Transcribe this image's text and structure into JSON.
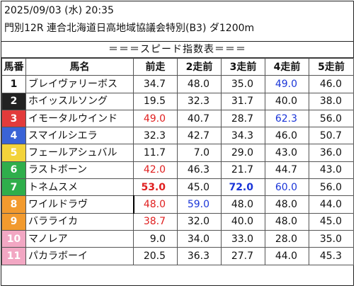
{
  "header": {
    "line1": "2025/09/03 (水) 20:35",
    "line2": "門別12R 連合北海道日高地域協議会特別(B3) ダ1200m"
  },
  "title": "＝＝＝スピード指数表＝＝＝",
  "columns": [
    "馬番",
    "馬名",
    "前走",
    "2走前",
    "3走前",
    "4走前",
    "5走前"
  ],
  "colors": {
    "red": "#e02020",
    "blue": "#1a35d8"
  },
  "rows": [
    {
      "no": "1",
      "name": "ブレイヴァリーボス",
      "bg": "#ffffff",
      "fg": "#111111",
      "vals": [
        "34.7",
        "48.0",
        "35.0",
        "49.0",
        "46.0"
      ],
      "cls": [
        "",
        "",
        "",
        "blue",
        ""
      ]
    },
    {
      "no": "2",
      "name": "ホイッスルソング",
      "bg": "#222222",
      "fg": "#ffffff",
      "vals": [
        "19.5",
        "32.3",
        "31.7",
        "40.0",
        "38.0"
      ],
      "cls": [
        "",
        "",
        "",
        "",
        ""
      ]
    },
    {
      "no": "3",
      "name": "イモータルウインド",
      "bg": "#e23b3b",
      "fg": "#ffffff",
      "vals": [
        "49.0",
        "40.7",
        "28.7",
        "62.3",
        "56.0"
      ],
      "cls": [
        "red",
        "",
        "",
        "blue",
        ""
      ]
    },
    {
      "no": "4",
      "name": "スマイルシエラ",
      "bg": "#3a63d6",
      "fg": "#ffffff",
      "vals": [
        "32.3",
        "42.7",
        "34.3",
        "46.0",
        "50.7"
      ],
      "cls": [
        "",
        "",
        "",
        "",
        ""
      ]
    },
    {
      "no": "5",
      "name": "フェールアシュバル",
      "bg": "#f3d33a",
      "fg": "#ffffff",
      "vals": [
        "11.7",
        "7.0",
        "29.0",
        "43.0",
        "36.0"
      ],
      "cls": [
        "",
        "",
        "",
        "",
        ""
      ]
    },
    {
      "no": "6",
      "name": "ラストボーン",
      "bg": "#2fae4b",
      "fg": "#ffffff",
      "vals": [
        "42.0",
        "46.3",
        "21.7",
        "44.7",
        "43.0"
      ],
      "cls": [
        "red",
        "",
        "",
        "",
        ""
      ]
    },
    {
      "no": "7",
      "name": "トネムスメ",
      "bg": "#2fae4b",
      "fg": "#ffffff",
      "vals": [
        "53.0",
        "45.0",
        "72.0",
        "60.0",
        "56.0"
      ],
      "cls": [
        "red bold",
        "",
        "blue bold",
        "blue",
        ""
      ]
    },
    {
      "no": "8",
      "name": "ワイルドラヴ",
      "bg": "#f29a2e",
      "fg": "#ffffff",
      "vals": [
        "48.0",
        "59.0",
        "48.0",
        "48.0",
        "44.0"
      ],
      "cls": [
        "red",
        "blue",
        "",
        "",
        ""
      ]
    },
    {
      "no": "9",
      "name": "バラライカ",
      "bg": "#f29a2e",
      "fg": "#ffffff",
      "vals": [
        "38.7",
        "32.0",
        "40.0",
        "48.0",
        "45.0"
      ],
      "cls": [
        "red",
        "",
        "",
        "",
        ""
      ]
    },
    {
      "no": "10",
      "name": "マノレア",
      "bg": "#f2a7c3",
      "fg": "#ffffff",
      "vals": [
        "9.0",
        "34.0",
        "33.0",
        "28.0",
        "35.0"
      ],
      "cls": [
        "",
        "",
        "",
        "",
        ""
      ]
    },
    {
      "no": "11",
      "name": "パカラボーイ",
      "bg": "#f2a7c3",
      "fg": "#ffffff",
      "vals": [
        "20.5",
        "36.3",
        "27.7",
        "44.0",
        "45.3"
      ],
      "cls": [
        "",
        "",
        "",
        "",
        ""
      ]
    }
  ]
}
